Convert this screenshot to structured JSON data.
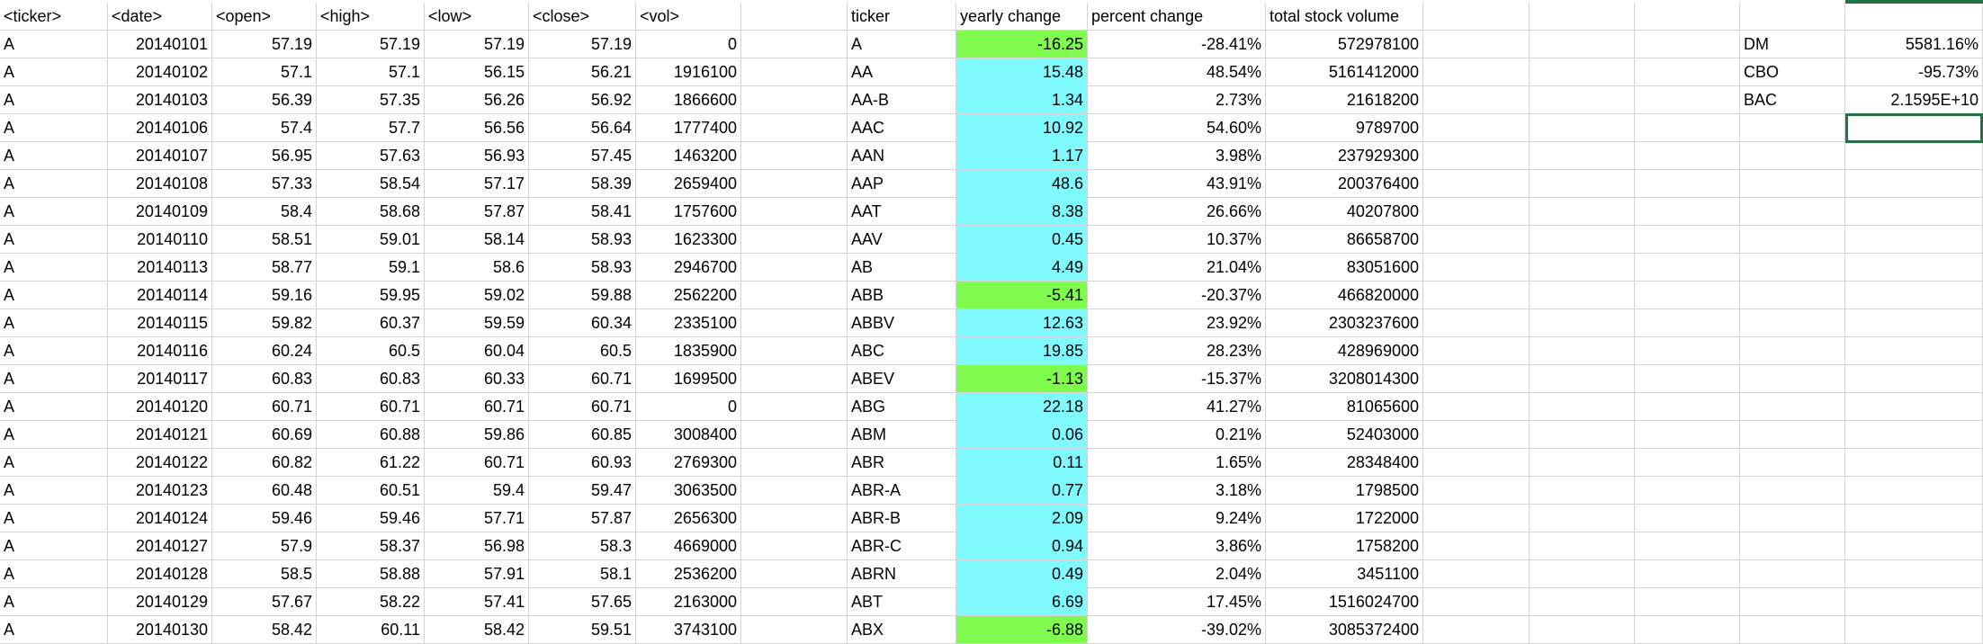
{
  "colors": {
    "positive_fill": "#7ffbff",
    "negative_fill": "#7ffb4e",
    "gridline": "#d4d4d4",
    "selection": "#217346"
  },
  "sheet": {
    "rows": [
      [
        "<ticker>",
        "<date>",
        "<open>",
        "<high>",
        "<low>",
        "<close>",
        "<vol>",
        "",
        "ticker",
        "yearly change",
        "percent change",
        "total stock volume",
        "",
        "",
        "",
        "",
        "",
        ""
      ],
      [
        "A",
        "20140101",
        "57.19",
        "57.19",
        "57.19",
        "57.19",
        "0",
        "",
        "A",
        "-16.25",
        "-28.41%",
        "572978100",
        "",
        "",
        "",
        "",
        "DM",
        "5581.16%"
      ],
      [
        "A",
        "20140102",
        "57.1",
        "57.1",
        "56.15",
        "56.21",
        "1916100",
        "",
        "AA",
        "15.48",
        "48.54%",
        "5161412000",
        "",
        "",
        "",
        "",
        "CBO",
        "-95.73%"
      ],
      [
        "A",
        "20140103",
        "56.39",
        "57.35",
        "56.26",
        "56.92",
        "1866600",
        "",
        "AA-B",
        "1.34",
        "2.73%",
        "21618200",
        "",
        "",
        "",
        "",
        "BAC",
        "2.1595E+10"
      ],
      [
        "A",
        "20140106",
        "57.4",
        "57.7",
        "56.56",
        "56.64",
        "1777400",
        "",
        "AAC",
        "10.92",
        "54.60%",
        "9789700",
        "",
        "",
        "",
        "",
        "",
        ""
      ],
      [
        "A",
        "20140107",
        "56.95",
        "57.63",
        "56.93",
        "57.45",
        "1463200",
        "",
        "AAN",
        "1.17",
        "3.98%",
        "237929300",
        "",
        "",
        "",
        "",
        "",
        ""
      ],
      [
        "A",
        "20140108",
        "57.33",
        "58.54",
        "57.17",
        "58.39",
        "2659400",
        "",
        "AAP",
        "48.6",
        "43.91%",
        "200376400",
        "",
        "",
        "",
        "",
        "",
        ""
      ],
      [
        "A",
        "20140109",
        "58.4",
        "58.68",
        "57.87",
        "58.41",
        "1757600",
        "",
        "AAT",
        "8.38",
        "26.66%",
        "40207800",
        "",
        "",
        "",
        "",
        "",
        ""
      ],
      [
        "A",
        "20140110",
        "58.51",
        "59.01",
        "58.14",
        "58.93",
        "1623300",
        "",
        "AAV",
        "0.45",
        "10.37%",
        "86658700",
        "",
        "",
        "",
        "",
        "",
        ""
      ],
      [
        "A",
        "20140113",
        "58.77",
        "59.1",
        "58.6",
        "58.93",
        "2946700",
        "",
        "AB",
        "4.49",
        "21.04%",
        "83051600",
        "",
        "",
        "",
        "",
        "",
        ""
      ],
      [
        "A",
        "20140114",
        "59.16",
        "59.95",
        "59.02",
        "59.88",
        "2562200",
        "",
        "ABB",
        "-5.41",
        "-20.37%",
        "466820000",
        "",
        "",
        "",
        "",
        "",
        ""
      ],
      [
        "A",
        "20140115",
        "59.82",
        "60.37",
        "59.59",
        "60.34",
        "2335100",
        "",
        "ABBV",
        "12.63",
        "23.92%",
        "2303237600",
        "",
        "",
        "",
        "",
        "",
        ""
      ],
      [
        "A",
        "20140116",
        "60.24",
        "60.5",
        "60.04",
        "60.5",
        "1835900",
        "",
        "ABC",
        "19.85",
        "28.23%",
        "428969000",
        "",
        "",
        "",
        "",
        "",
        ""
      ],
      [
        "A",
        "20140117",
        "60.83",
        "60.83",
        "60.33",
        "60.71",
        "1699500",
        "",
        "ABEV",
        "-1.13",
        "-15.37%",
        "3208014300",
        "",
        "",
        "",
        "",
        "",
        ""
      ],
      [
        "A",
        "20140120",
        "60.71",
        "60.71",
        "60.71",
        "60.71",
        "0",
        "",
        "ABG",
        "22.18",
        "41.27%",
        "81065600",
        "",
        "",
        "",
        "",
        "",
        ""
      ],
      [
        "A",
        "20140121",
        "60.69",
        "60.88",
        "59.86",
        "60.85",
        "3008400",
        "",
        "ABM",
        "0.06",
        "0.21%",
        "52403000",
        "",
        "",
        "",
        "",
        "",
        ""
      ],
      [
        "A",
        "20140122",
        "60.82",
        "61.22",
        "60.71",
        "60.93",
        "2769300",
        "",
        "ABR",
        "0.11",
        "1.65%",
        "28348400",
        "",
        "",
        "",
        "",
        "",
        ""
      ],
      [
        "A",
        "20140123",
        "60.48",
        "60.51",
        "59.4",
        "59.47",
        "3063500",
        "",
        "ABR-A",
        "0.77",
        "3.18%",
        "1798500",
        "",
        "",
        "",
        "",
        "",
        ""
      ],
      [
        "A",
        "20140124",
        "59.46",
        "59.46",
        "57.71",
        "57.87",
        "2656300",
        "",
        "ABR-B",
        "2.09",
        "9.24%",
        "1722000",
        "",
        "",
        "",
        "",
        "",
        ""
      ],
      [
        "A",
        "20140127",
        "57.9",
        "58.37",
        "56.98",
        "58.3",
        "4669000",
        "",
        "ABR-C",
        "0.94",
        "3.86%",
        "1758200",
        "",
        "",
        "",
        "",
        "",
        ""
      ],
      [
        "A",
        "20140128",
        "58.5",
        "58.88",
        "57.91",
        "58.1",
        "2536200",
        "",
        "ABRN",
        "0.49",
        "2.04%",
        "3451100",
        "",
        "",
        "",
        "",
        "",
        ""
      ],
      [
        "A",
        "20140129",
        "57.67",
        "58.22",
        "57.41",
        "57.65",
        "2163000",
        "",
        "ABT",
        "6.69",
        "17.45%",
        "1516024700",
        "",
        "",
        "",
        "",
        "",
        ""
      ],
      [
        "A",
        "20140130",
        "58.42",
        "60.11",
        "58.42",
        "59.51",
        "3743100",
        "",
        "ABX",
        "-6.88",
        "-39.02%",
        "3085372400",
        "",
        "",
        "",
        "",
        "",
        ""
      ]
    ]
  }
}
